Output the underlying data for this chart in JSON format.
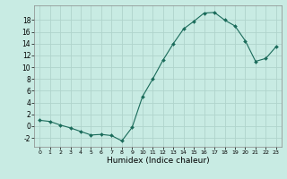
{
  "x": [
    0,
    1,
    2,
    3,
    4,
    5,
    6,
    7,
    8,
    9,
    10,
    11,
    12,
    13,
    14,
    15,
    16,
    17,
    18,
    19,
    20,
    21,
    22,
    23
  ],
  "y": [
    1.0,
    0.8,
    0.2,
    -0.3,
    -0.9,
    -1.5,
    -1.4,
    -1.6,
    -2.5,
    -0.2,
    5.0,
    8.0,
    11.2,
    14.0,
    16.5,
    17.8,
    19.2,
    19.3,
    18.0,
    17.0,
    14.5,
    11.0,
    11.5,
    13.5
  ],
  "xlabel": "Humidex (Indice chaleur)",
  "xlim": [
    -0.5,
    23.5
  ],
  "ylim": [
    -3.5,
    20.5
  ],
  "yticks": [
    -2,
    0,
    2,
    4,
    6,
    8,
    10,
    12,
    14,
    16,
    18
  ],
  "xticks": [
    0,
    1,
    2,
    3,
    4,
    5,
    6,
    7,
    8,
    9,
    10,
    11,
    12,
    13,
    14,
    15,
    16,
    17,
    18,
    19,
    20,
    21,
    22,
    23
  ],
  "bg_color": "#c8ebe3",
  "grid_color": "#b0d4cc",
  "line_color": "#1a6b5a",
  "marker_color": "#1a6b5a"
}
